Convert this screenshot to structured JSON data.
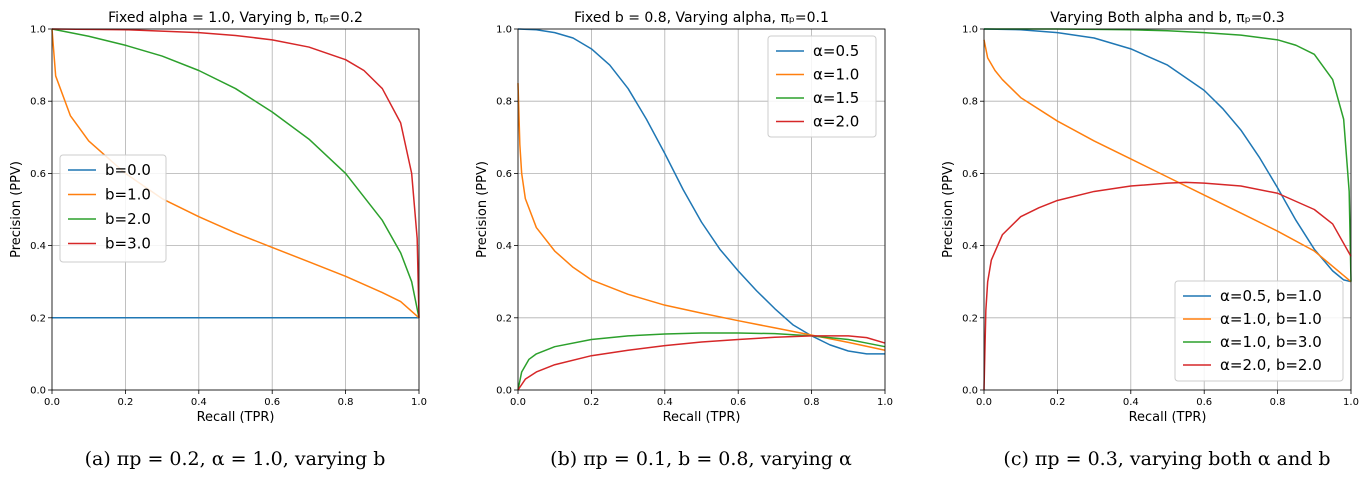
{
  "chart_data": [
    {
      "type": "line",
      "title": "Fixed alpha = 1.0, Varying b, πₚ=0.2",
      "xlabel": "Recall (TPR)",
      "ylabel": "Precision (PPV)",
      "xlim": [
        0,
        1
      ],
      "ylim": [
        0,
        1
      ],
      "xticks": [
        "0.0",
        "0.2",
        "0.4",
        "0.6",
        "0.8",
        "1.0"
      ],
      "yticks": [
        "0.0",
        "0.2",
        "0.4",
        "0.6",
        "0.8",
        "1.0"
      ],
      "grid": true,
      "legend_position": "center-left",
      "caption": "(a) πp = 0.2, α = 1.0, varying b",
      "series": [
        {
          "name": "b=0.0",
          "color": "#1f77b4",
          "x": [
            0.0,
            0.2,
            0.4,
            0.6,
            0.8,
            1.0
          ],
          "y": [
            0.2,
            0.2,
            0.2,
            0.2,
            0.2,
            0.2
          ]
        },
        {
          "name": "b=1.0",
          "color": "#ff7f0e",
          "x": [
            0.0,
            0.01,
            0.05,
            0.1,
            0.2,
            0.3,
            0.4,
            0.5,
            0.6,
            0.7,
            0.8,
            0.9,
            0.95,
            1.0
          ],
          "y": [
            1.0,
            0.87,
            0.76,
            0.69,
            0.6,
            0.53,
            0.48,
            0.435,
            0.395,
            0.355,
            0.315,
            0.27,
            0.245,
            0.2
          ]
        },
        {
          "name": "b=2.0",
          "color": "#2ca02c",
          "x": [
            0.0,
            0.1,
            0.2,
            0.3,
            0.4,
            0.5,
            0.6,
            0.7,
            0.8,
            0.9,
            0.95,
            0.98,
            1.0
          ],
          "y": [
            1.0,
            0.98,
            0.955,
            0.925,
            0.885,
            0.835,
            0.77,
            0.695,
            0.6,
            0.47,
            0.38,
            0.3,
            0.2
          ]
        },
        {
          "name": "b=3.0",
          "color": "#d62728",
          "x": [
            0.0,
            0.2,
            0.4,
            0.5,
            0.6,
            0.7,
            0.8,
            0.85,
            0.9,
            0.95,
            0.98,
            0.995,
            1.0
          ],
          "y": [
            1.0,
            0.998,
            0.99,
            0.982,
            0.97,
            0.95,
            0.915,
            0.885,
            0.835,
            0.74,
            0.6,
            0.42,
            0.2
          ]
        }
      ]
    },
    {
      "type": "line",
      "title": "Fixed b = 0.8, Varying alpha, πₚ=0.1",
      "xlabel": "Recall (TPR)",
      "ylabel": "Precision (PPV)",
      "xlim": [
        0,
        1
      ],
      "ylim": [
        0,
        1
      ],
      "xticks": [
        "0.0",
        "0.2",
        "0.4",
        "0.6",
        "0.8",
        "1.0"
      ],
      "yticks": [
        "0.0",
        "0.2",
        "0.4",
        "0.6",
        "0.8",
        "1.0"
      ],
      "grid": true,
      "legend_position": "top-right",
      "caption": "(b) πp = 0.1, b = 0.8, varying α",
      "series": [
        {
          "name": "α=0.5",
          "color": "#1f77b4",
          "x": [
            0.0,
            0.05,
            0.1,
            0.15,
            0.2,
            0.25,
            0.3,
            0.35,
            0.4,
            0.45,
            0.5,
            0.55,
            0.6,
            0.65,
            0.7,
            0.75,
            0.8,
            0.85,
            0.9,
            0.95,
            1.0
          ],
          "y": [
            1.0,
            0.998,
            0.99,
            0.975,
            0.945,
            0.9,
            0.835,
            0.75,
            0.655,
            0.555,
            0.465,
            0.39,
            0.33,
            0.275,
            0.225,
            0.18,
            0.15,
            0.125,
            0.108,
            0.1,
            0.1
          ]
        },
        {
          "name": "α=1.0",
          "color": "#ff7f0e",
          "x": [
            0.0,
            0.005,
            0.01,
            0.02,
            0.05,
            0.1,
            0.15,
            0.2,
            0.3,
            0.4,
            0.5,
            0.6,
            0.7,
            0.8,
            0.9,
            1.0
          ],
          "y": [
            0.85,
            0.68,
            0.6,
            0.53,
            0.45,
            0.385,
            0.34,
            0.305,
            0.265,
            0.235,
            0.213,
            0.192,
            0.172,
            0.152,
            0.132,
            0.11
          ]
        },
        {
          "name": "α=1.5",
          "color": "#2ca02c",
          "x": [
            0.0,
            0.01,
            0.03,
            0.05,
            0.1,
            0.2,
            0.3,
            0.4,
            0.5,
            0.6,
            0.7,
            0.8,
            0.9,
            0.95,
            1.0
          ],
          "y": [
            0.0,
            0.05,
            0.085,
            0.1,
            0.12,
            0.14,
            0.15,
            0.155,
            0.158,
            0.158,
            0.156,
            0.15,
            0.14,
            0.13,
            0.12
          ]
        },
        {
          "name": "α=2.0",
          "color": "#d62728",
          "x": [
            0.0,
            0.02,
            0.05,
            0.1,
            0.2,
            0.3,
            0.4,
            0.5,
            0.6,
            0.7,
            0.8,
            0.9,
            0.95,
            1.0
          ],
          "y": [
            0.0,
            0.03,
            0.05,
            0.07,
            0.095,
            0.11,
            0.123,
            0.133,
            0.14,
            0.146,
            0.15,
            0.15,
            0.145,
            0.13
          ]
        }
      ]
    },
    {
      "type": "line",
      "title": "Varying Both alpha and b, πₚ=0.3",
      "xlabel": "Recall (TPR)",
      "ylabel": "Precision (PPV)",
      "xlim": [
        0,
        1
      ],
      "ylim": [
        0,
        1
      ],
      "xticks": [
        "0.0",
        "0.2",
        "0.4",
        "0.6",
        "0.8",
        "1.0"
      ],
      "yticks": [
        "0.0",
        "0.2",
        "0.4",
        "0.6",
        "0.8",
        "1.0"
      ],
      "grid": true,
      "legend_position": "bottom-right",
      "caption": "(c) πp = 0.3, varying both α and b",
      "series": [
        {
          "name": "α=0.5, b=1.0",
          "color": "#1f77b4",
          "x": [
            0.0,
            0.1,
            0.2,
            0.3,
            0.4,
            0.5,
            0.6,
            0.65,
            0.7,
            0.75,
            0.8,
            0.85,
            0.9,
            0.95,
            0.98,
            1.0
          ],
          "y": [
            1.0,
            0.998,
            0.99,
            0.975,
            0.945,
            0.9,
            0.83,
            0.78,
            0.72,
            0.645,
            0.56,
            0.47,
            0.39,
            0.33,
            0.305,
            0.3
          ]
        },
        {
          "name": "α=1.0, b=1.0",
          "color": "#ff7f0e",
          "x": [
            0.0,
            0.01,
            0.03,
            0.05,
            0.1,
            0.2,
            0.3,
            0.4,
            0.5,
            0.6,
            0.7,
            0.8,
            0.9,
            1.0
          ],
          "y": [
            0.97,
            0.92,
            0.885,
            0.86,
            0.81,
            0.745,
            0.69,
            0.64,
            0.59,
            0.54,
            0.49,
            0.44,
            0.385,
            0.3
          ]
        },
        {
          "name": "α=1.0, b=3.0",
          "color": "#2ca02c",
          "x": [
            0.0,
            0.2,
            0.4,
            0.5,
            0.6,
            0.7,
            0.8,
            0.85,
            0.9,
            0.95,
            0.98,
            0.995,
            1.0
          ],
          "y": [
            1.0,
            1.0,
            0.998,
            0.995,
            0.99,
            0.983,
            0.97,
            0.955,
            0.93,
            0.86,
            0.75,
            0.55,
            0.3
          ]
        },
        {
          "name": "α=2.0, b=2.0",
          "color": "#d62728",
          "x": [
            0.0,
            0.005,
            0.01,
            0.02,
            0.05,
            0.1,
            0.15,
            0.2,
            0.3,
            0.4,
            0.5,
            0.55,
            0.6,
            0.7,
            0.8,
            0.9,
            0.95,
            1.0
          ],
          "y": [
            0.0,
            0.22,
            0.3,
            0.36,
            0.43,
            0.48,
            0.505,
            0.525,
            0.55,
            0.565,
            0.573,
            0.575,
            0.573,
            0.565,
            0.545,
            0.5,
            0.46,
            0.37
          ]
        }
      ]
    }
  ]
}
